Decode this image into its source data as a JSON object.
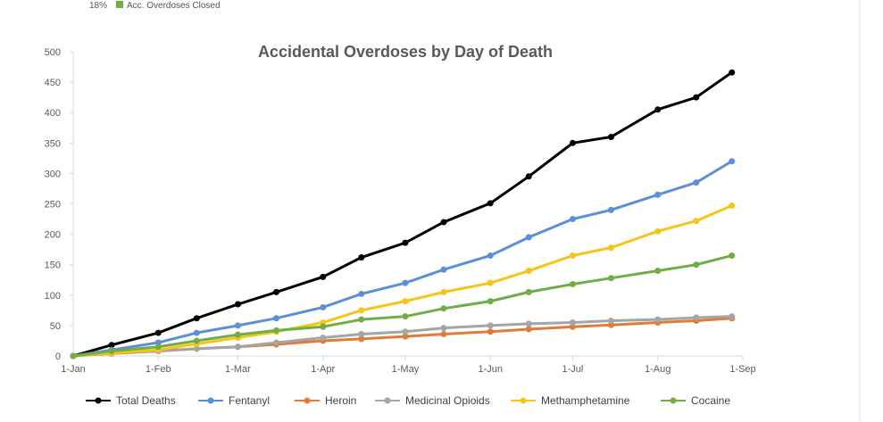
{
  "top_fragment": {
    "pct": "18%",
    "label": "Acc. Overdoses Closed",
    "color": "#70ad47"
  },
  "chart_data": {
    "type": "line",
    "title": "Accidental Overdoses by Day of Death",
    "xlabel": "",
    "ylabel": "",
    "ylim": [
      0,
      500
    ],
    "yticks": [
      0,
      50,
      100,
      150,
      200,
      250,
      300,
      350,
      400,
      450,
      500
    ],
    "xlim": [
      "2020-01-01",
      "2020-09-01"
    ],
    "xticks": [
      "1-Jan",
      "1-Feb",
      "1-Mar",
      "1-Apr",
      "1-May",
      "1-Jun",
      "1-Jul",
      "1-Aug",
      "1-Sep"
    ],
    "grid": false,
    "legend": "bottom",
    "x": [
      "2020-01-01",
      "2020-01-15",
      "2020-02-01",
      "2020-02-15",
      "2020-03-01",
      "2020-03-15",
      "2020-04-01",
      "2020-04-15",
      "2020-05-01",
      "2020-05-15",
      "2020-06-01",
      "2020-06-15",
      "2020-07-01",
      "2020-07-15",
      "2020-08-01",
      "2020-08-15",
      "2020-08-28"
    ],
    "series": [
      {
        "name": "Total Deaths",
        "color": "#000000",
        "values": [
          0,
          18,
          38,
          62,
          85,
          105,
          130,
          162,
          186,
          220,
          251,
          295,
          350,
          360,
          405,
          425,
          466
        ]
      },
      {
        "name": "Fentanyl",
        "color": "#5b8fd6",
        "values": [
          0,
          10,
          22,
          38,
          50,
          62,
          80,
          102,
          120,
          142,
          165,
          195,
          225,
          240,
          265,
          285,
          320
        ]
      },
      {
        "name": "Heroin",
        "color": "#e07b39",
        "values": [
          0,
          4,
          8,
          12,
          15,
          19,
          25,
          28,
          32,
          36,
          40,
          44,
          48,
          51,
          55,
          58,
          62
        ]
      },
      {
        "name": "Medicinal Opioids",
        "color": "#a5a5a5",
        "values": [
          0,
          5,
          8,
          12,
          15,
          22,
          30,
          36,
          40,
          46,
          50,
          53,
          55,
          58,
          60,
          63,
          65
        ]
      },
      {
        "name": "Methamphetamine",
        "color": "#f5c518",
        "values": [
          0,
          5,
          10,
          20,
          30,
          40,
          55,
          75,
          90,
          105,
          120,
          140,
          165,
          178,
          205,
          222,
          247
        ]
      },
      {
        "name": "Cocaine",
        "color": "#70ad47",
        "values": [
          0,
          8,
          15,
          25,
          35,
          42,
          48,
          60,
          65,
          78,
          90,
          105,
          118,
          128,
          140,
          150,
          165
        ]
      }
    ]
  }
}
